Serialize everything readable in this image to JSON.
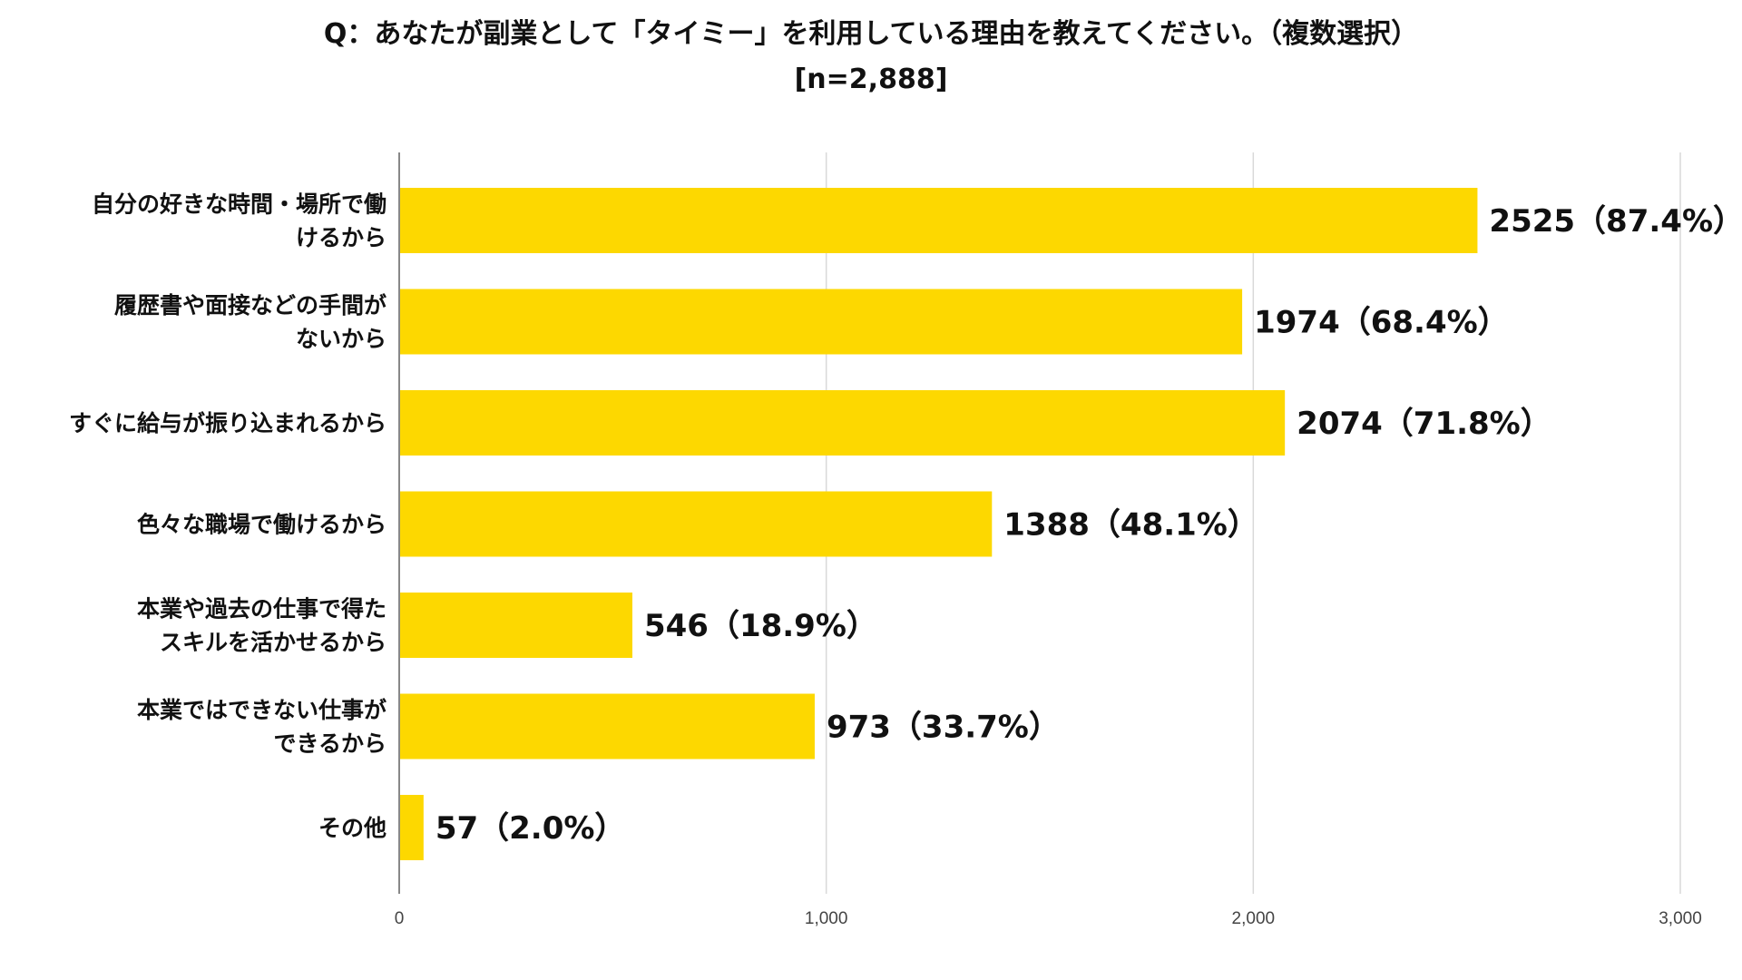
{
  "title_line1": "Q：あなたが副業として「タイミー」を利用している理由を教えてください。（複数選択）",
  "title_line2": "[n=2,888]",
  "colors": {
    "bar": "#FDD800",
    "grid": "#d9d9d9",
    "axis": "#888888"
  },
  "chart_data": {
    "type": "bar",
    "orientation": "horizontal",
    "title": "Q：あなたが副業として「タイミー」を利用している理由を教えてください。（複数選択）",
    "subtitle": "[n=2,888]",
    "categories": [
      [
        "自分の好きな時間・場所で働",
        "けるから"
      ],
      [
        "履歴書や面接などの手間が",
        "ないから"
      ],
      [
        "すぐに給与が振り込まれるから"
      ],
      [
        "色々な職場で働けるから"
      ],
      [
        "本業や過去の仕事で得た",
        "スキルを活かせるから"
      ],
      [
        "本業ではできない仕事が",
        "できるから"
      ],
      [
        "その他"
      ]
    ],
    "values": [
      2525,
      1974,
      2074,
      1388,
      546,
      973,
      57
    ],
    "value_labels": [
      "2525（87.4%）",
      "1974（68.4%）",
      "2074（71.8%）",
      "1388（48.1%）",
      "546（18.9%）",
      "973（33.7%）",
      "57（2.0%）"
    ],
    "xlim": [
      0,
      3000
    ],
    "xticks": [
      0,
      1000,
      2000,
      3000
    ],
    "xtick_labels": [
      "0",
      "1,000",
      "2,000",
      "3,000"
    ],
    "grid": true,
    "legend": "none"
  }
}
